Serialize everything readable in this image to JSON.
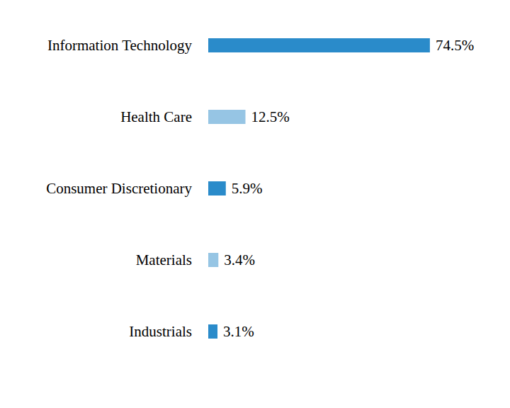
{
  "chart_data": {
    "type": "bar",
    "orientation": "horizontal",
    "categories": [
      "Information Technology",
      "Health Care",
      "Consumer Discretionary",
      "Materials",
      "Industrials"
    ],
    "values": [
      74.5,
      12.5,
      5.9,
      3.4,
      3.1
    ],
    "value_labels": [
      "74.5%",
      "12.5%",
      "5.9%",
      "3.4%",
      "3.1%"
    ],
    "colors": [
      "#2a8bca",
      "#96c5e4",
      "#2a8bca",
      "#96c5e4",
      "#2a8bca"
    ],
    "data_labels": true,
    "tick_labels": false
  }
}
